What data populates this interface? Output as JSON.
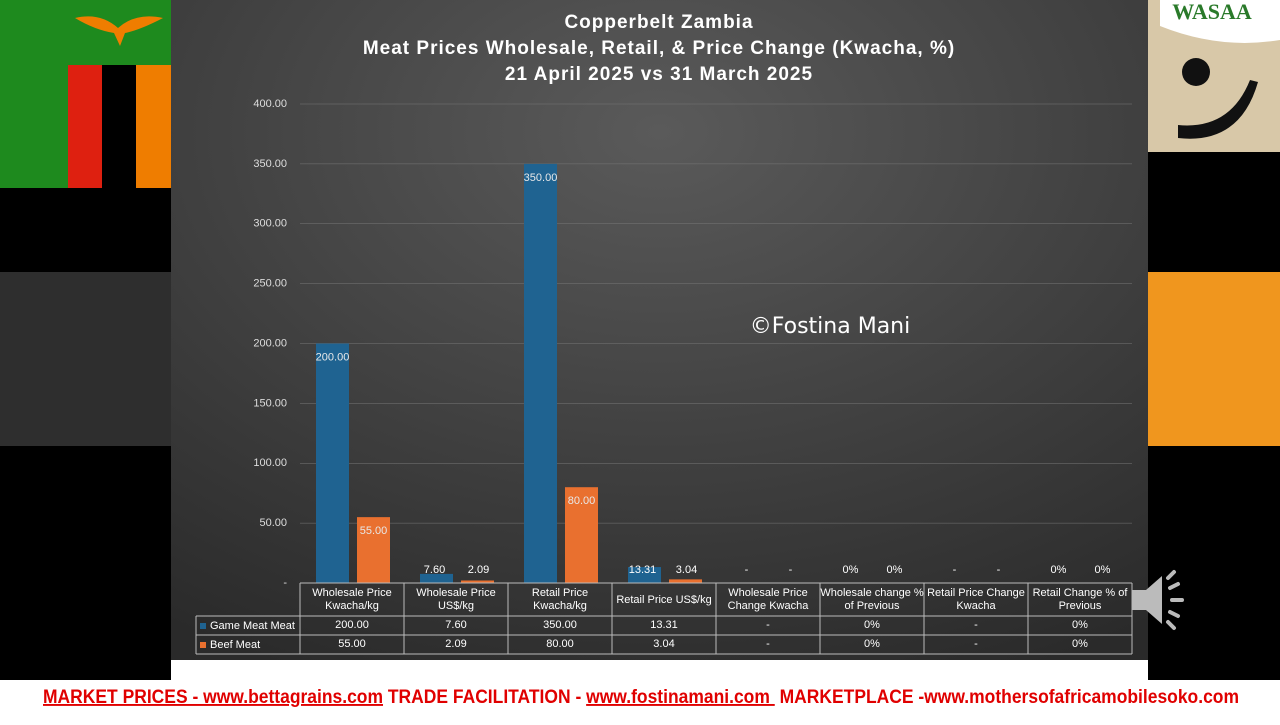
{
  "chart_data": {
    "type": "bar",
    "title": "Copperbelt Zambia",
    "subtitle": [
      "Meat Prices Wholesale, Retail, & Price Change (Kwacha, %)",
      "21 April 2025 vs 31 March 2025"
    ],
    "categories": [
      "Wholesale Price Kwacha/kg",
      "Wholesale Price US$/kg",
      "Retail Price Kwacha/kg",
      "Retail Price US$/kg",
      "Wholesale Price Change Kwacha",
      "Wholesale change % of Previous",
      "Retail Price Change Kwacha",
      "Retail Change % of Previous"
    ],
    "series": [
      {
        "name": "Game Meat Meat",
        "color": "#1f6391",
        "values": [
          200,
          7.6,
          350,
          13.31,
          0,
          0,
          0,
          0
        ],
        "value_labels": [
          "200.00",
          "7.60",
          "350.00",
          "13.31",
          "-",
          "0%",
          "-",
          "0%"
        ]
      },
      {
        "name": "Beef Meat",
        "color": "#e9702f",
        "values": [
          55,
          2.09,
          80,
          3.04,
          0,
          0,
          0,
          0
        ],
        "value_labels": [
          "55.00",
          "2.09",
          "80.00",
          "3.04",
          "-",
          "0%",
          "-",
          "0%"
        ]
      }
    ],
    "ylim": [
      0,
      400
    ],
    "yticks": [
      {
        "value": 0,
        "label": "-"
      },
      {
        "value": 50,
        "label": "50.00"
      },
      {
        "value": 100,
        "label": "100.00"
      },
      {
        "value": 150,
        "label": "150.00"
      },
      {
        "value": 200,
        "label": "200.00"
      },
      {
        "value": 250,
        "label": "250.00"
      },
      {
        "value": 300,
        "label": "300.00"
      },
      {
        "value": 350,
        "label": "350.00"
      },
      {
        "value": 400,
        "label": "400.00"
      }
    ],
    "grid": true,
    "data_table": true,
    "annotation": "©Fostina Mani"
  },
  "logo": {
    "text": "WASAA"
  },
  "footer": [
    {
      "text": "MARKET PRICES - www.bettagrains.com",
      "underline": true
    },
    {
      "text": " TRADE FACILITATION - ",
      "underline": false
    },
    {
      "text": "www.fostinamani.com ",
      "underline": true
    },
    {
      "text": " MARKETPLACE -www.mothersofafricamobilesoko.com",
      "underline": false
    }
  ]
}
